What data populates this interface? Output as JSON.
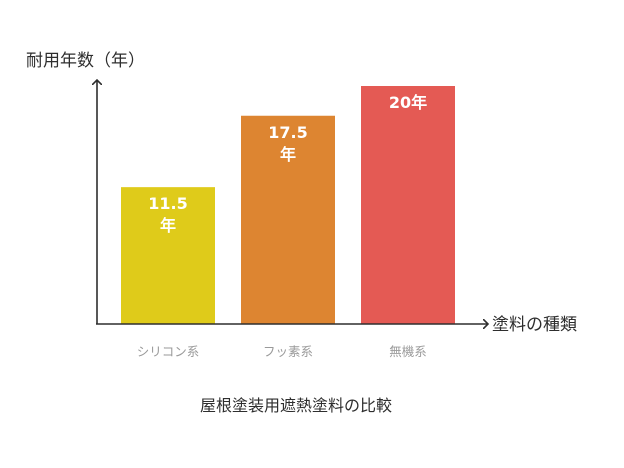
{
  "chart_data": {
    "type": "bar",
    "title": "屋根塗装用遮熱塗料の比較",
    "ylabel": "耐用年数（年）",
    "xlabel": "塗料の種類",
    "categories": [
      "シリコン系",
      "フッ素系",
      "無機系"
    ],
    "values": [
      11.5,
      17.5,
      20
    ],
    "value_labels": [
      [
        "11.5",
        "年"
      ],
      [
        "17.5",
        "年"
      ],
      [
        "20年"
      ]
    ],
    "colors": [
      "#DFCB1A",
      "#DD8531",
      "#E45A54"
    ],
    "ylim": [
      0,
      22
    ],
    "grid": false,
    "legend": "none"
  }
}
